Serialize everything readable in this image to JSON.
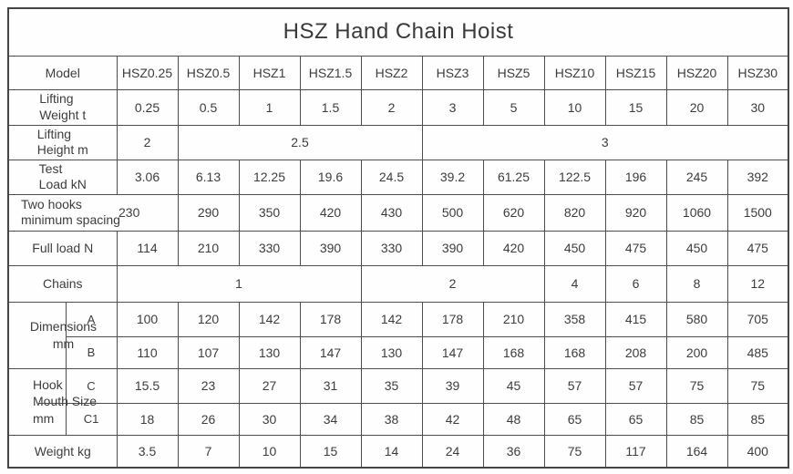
{
  "title": "HSZ Hand Chain Hoist",
  "colors": {
    "border": "#4e4e4e",
    "text": "#3d3d3d",
    "background": "#ffffff"
  },
  "rows": {
    "model": {
      "label": "Model",
      "cells": [
        "HSZ0.25",
        "HSZ0.5",
        "HSZ1",
        "HSZ1.5",
        "HSZ2",
        "HSZ3",
        "HSZ5",
        "HSZ10",
        "HSZ15",
        "HSZ20",
        "HSZ30"
      ]
    },
    "lifting_weight": {
      "label": "Lifting\nWeight t",
      "cells": [
        "0.25",
        "0.5",
        "1",
        "1.5",
        "2",
        "3",
        "5",
        "10",
        "15",
        "20",
        "30"
      ]
    },
    "lifting_height": {
      "label": "Lifting\nHeight m",
      "cells": [
        "2",
        "2.5",
        "3"
      ],
      "spans": [
        1,
        4,
        6
      ]
    },
    "test_load": {
      "label": "Test\nLoad kN",
      "cells": [
        "3.06",
        "6.13",
        "12.25",
        "19.6",
        "24.5",
        "39.2",
        "61.25",
        "122.5",
        "196",
        "245",
        "392"
      ]
    },
    "two_hooks_min_spacing": {
      "label": "Two hooks\nminimum spacing",
      "cells": [
        "230",
        "290",
        "350",
        "420",
        "430",
        "500",
        "620",
        "820",
        "920",
        "1060",
        "1500"
      ]
    },
    "full_load": {
      "label": "Full load N",
      "cells": [
        "114",
        "210",
        "330",
        "390",
        "330",
        "390",
        "420",
        "450",
        "475",
        "450",
        "475"
      ]
    },
    "chains": {
      "label": "Chains",
      "cells": [
        "1",
        "2",
        "4",
        "6",
        "8",
        "12"
      ],
      "spans": [
        4,
        3,
        1,
        1,
        1,
        1
      ]
    },
    "dimensions": {
      "label": "Dimensions\nmm",
      "rows": [
        {
          "name": "A",
          "cells": [
            "100",
            "120",
            "142",
            "178",
            "142",
            "178",
            "210",
            "358",
            "415",
            "580",
            "705"
          ]
        },
        {
          "name": "B",
          "cells": [
            "110",
            "107",
            "130",
            "147",
            "130",
            "147",
            "168",
            "168",
            "208",
            "200",
            "485"
          ]
        }
      ]
    },
    "hook_mouth": {
      "label": "Hook\nMouth Size\nmm",
      "rows": [
        {
          "name": "C",
          "cells": [
            "15.5",
            "23",
            "27",
            "31",
            "35",
            "39",
            "45",
            "57",
            "57",
            "75",
            "75"
          ]
        },
        {
          "name": "C1",
          "cells": [
            "18",
            "26",
            "30",
            "34",
            "38",
            "42",
            "48",
            "65",
            "65",
            "85",
            "85"
          ]
        }
      ]
    },
    "weight": {
      "label": "Weight kg",
      "cells": [
        "3.5",
        "7",
        "10",
        "15",
        "14",
        "24",
        "36",
        "75",
        "117",
        "164",
        "400"
      ]
    }
  }
}
